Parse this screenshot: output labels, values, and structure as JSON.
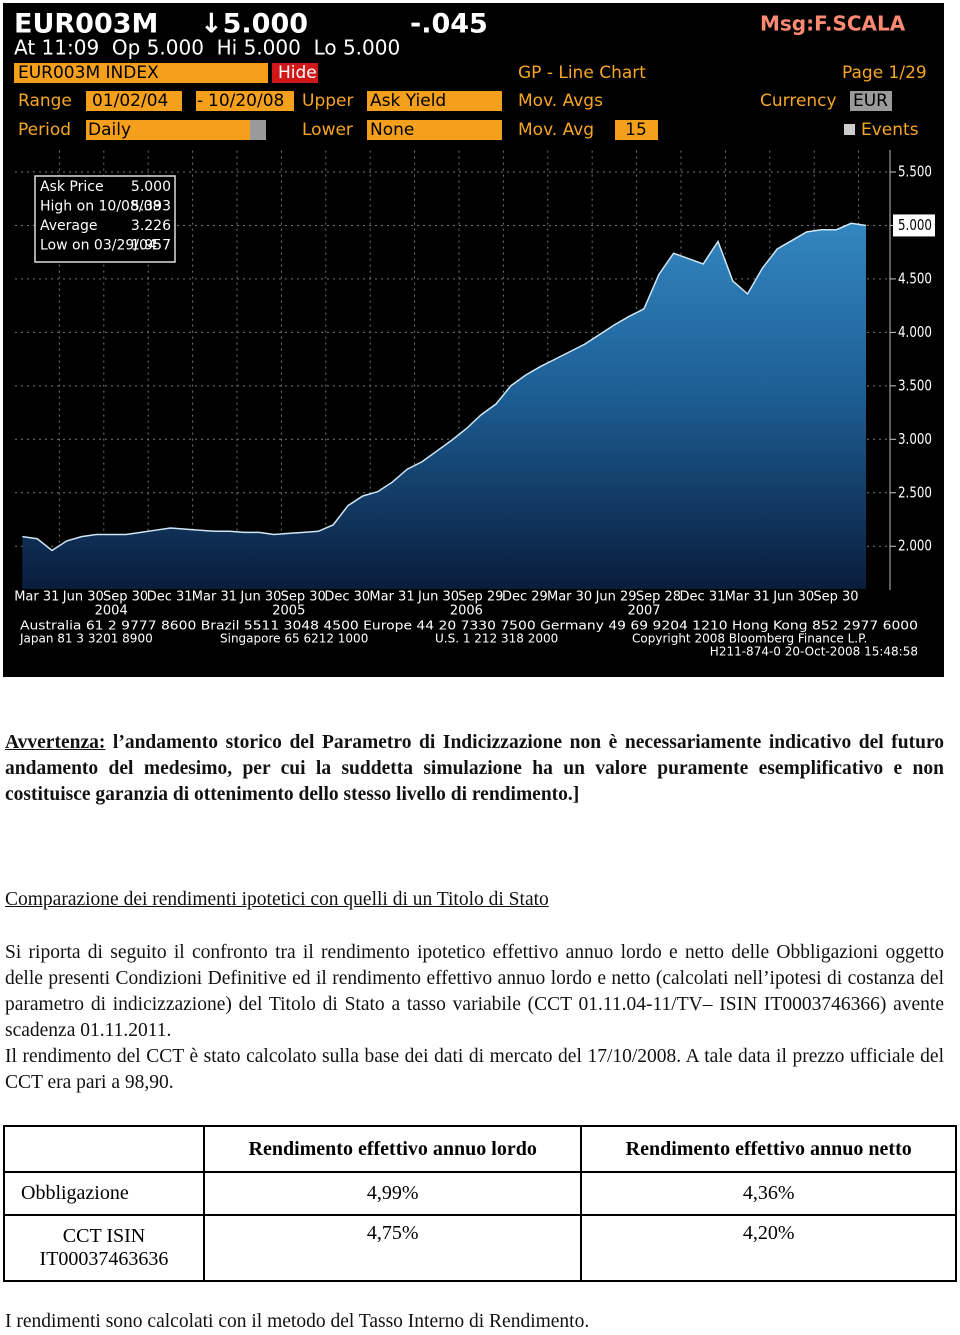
{
  "terminal": {
    "ticker": "EUR003M",
    "price": "↓5.000",
    "change": "-.045",
    "msg": "Msg:F.SCALA",
    "quote_line": "At 11:09  Op 5.000  Hi 5.000  Lo 5.000",
    "toolbar": {
      "security": "EUR003M INDEX",
      "hide": "Hide",
      "function": "GP - Line Chart",
      "page": "Page 1/29",
      "range_label": "Range",
      "start": "01/02/04",
      "range_sep": "-",
      "end": "10/20/08",
      "upper_label": "Upper",
      "upper": "Ask Yield",
      "mov_avgs_label": "Mov. Avgs",
      "currency_label": "Currency",
      "currency": "EUR",
      "period_label": "Period",
      "period": "Daily",
      "lower_label": "Lower",
      "lower": "None",
      "mov_avg_label": "Mov. Avg",
      "mov_avg": "15",
      "events": "Events"
    },
    "stats": [
      {
        "label": "Ask Price",
        "value": "5.000"
      },
      {
        "label": "High on 10/08/08",
        "value": "5.393"
      },
      {
        "label": "Average",
        "value": "3.226"
      },
      {
        "label": "Low on 03/29/04",
        "value": "1.957"
      }
    ],
    "footer": [
      "Australia 61 2 9777 8600 Brazil 5511 3048 4500 Europe 44 20 7330 7500 Germany 49 69 9204 1210 Hong Kong 852 2977 6000",
      "Japan 81 3 3201 8900",
      "Singapore 65 6212 1000",
      "U.S. 1 212 318 2000",
      "Copyright 2008 Bloomberg Finance L.P.",
      "H211-874-0 20-Oct-2008 15:48:58"
    ]
  },
  "chart_data": {
    "type": "area",
    "color": "#2f86c4",
    "x": [
      "2004-01",
      "2004-02",
      "2004-03",
      "2004-04",
      "2004-05",
      "2004-06",
      "2004-07",
      "2004-08",
      "2004-09",
      "2004-10",
      "2004-11",
      "2004-12",
      "2005-01",
      "2005-02",
      "2005-03",
      "2005-04",
      "2005-05",
      "2005-06",
      "2005-07",
      "2005-08",
      "2005-09",
      "2005-10",
      "2005-11",
      "2005-12",
      "2006-01",
      "2006-02",
      "2006-03",
      "2006-04",
      "2006-05",
      "2006-06",
      "2006-07",
      "2006-08",
      "2006-09",
      "2006-10",
      "2006-11",
      "2006-12",
      "2007-01",
      "2007-02",
      "2007-03",
      "2007-04",
      "2007-05",
      "2007-06",
      "2007-07",
      "2007-08",
      "2007-09",
      "2007-10",
      "2007-11",
      "2007-12",
      "2008-01",
      "2008-02",
      "2008-03",
      "2008-04",
      "2008-05",
      "2008-06",
      "2008-07",
      "2008-08",
      "2008-09",
      "2008-10"
    ],
    "values": [
      2.09,
      2.07,
      1.96,
      2.05,
      2.09,
      2.11,
      2.11,
      2.11,
      2.13,
      2.15,
      2.17,
      2.16,
      2.15,
      2.14,
      2.14,
      2.13,
      2.13,
      2.11,
      2.12,
      2.13,
      2.14,
      2.2,
      2.38,
      2.47,
      2.51,
      2.6,
      2.72,
      2.79,
      2.89,
      2.99,
      3.1,
      3.23,
      3.33,
      3.5,
      3.6,
      3.68,
      3.75,
      3.82,
      3.89,
      3.98,
      4.07,
      4.15,
      4.22,
      4.54,
      4.74,
      4.69,
      4.64,
      4.85,
      4.48,
      4.36,
      4.6,
      4.78,
      4.86,
      4.94,
      4.96,
      4.96,
      5.02,
      5.0
    ],
    "ylim": [
      1.6,
      5.7
    ],
    "yticks": [
      {
        "value": 2,
        "label": "2.000"
      },
      {
        "value": 2.5,
        "label": "2.500"
      },
      {
        "value": 3,
        "label": "3.000"
      },
      {
        "value": 3.5,
        "label": "3.500"
      },
      {
        "value": 4,
        "label": "4.000"
      },
      {
        "value": 4.5,
        "label": "4.500"
      },
      {
        "value": 5,
        "label": "5.000"
      },
      {
        "value": 5.5,
        "label": "5.500"
      }
    ],
    "xticks": [
      {
        "value": "2004-03",
        "label": "Mar 31"
      },
      {
        "value": "2004-06",
        "label": "Jun 30"
      },
      {
        "value": "2004-09",
        "label": "Sep 30"
      },
      {
        "value": "2004-12",
        "label": "Dec 31"
      },
      {
        "value": "2005-03",
        "label": "Mar 31"
      },
      {
        "value": "2005-06",
        "label": "Jun 30"
      },
      {
        "value": "2005-09",
        "label": "Sep 30"
      },
      {
        "value": "2005-12",
        "label": "Dec 30"
      },
      {
        "value": "2006-03",
        "label": "Mar 31"
      },
      {
        "value": "2006-06",
        "label": "Jun 30"
      },
      {
        "value": "2006-09",
        "label": "Sep 29"
      },
      {
        "value": "2006-12",
        "label": "Dec 29"
      },
      {
        "value": "2007-03",
        "label": "Mar 30"
      },
      {
        "value": "2007-06",
        "label": "Jun 29"
      },
      {
        "value": "2007-09",
        "label": "Sep 28"
      },
      {
        "value": "2007-12",
        "label": "Dec 31"
      },
      {
        "value": "2008-03",
        "label": "Mar 31"
      },
      {
        "value": "2008-06",
        "label": "Jun 30"
      },
      {
        "value": "2008-09",
        "label": "Sep 30"
      }
    ],
    "years": [
      {
        "value": "2004-07",
        "label": "2004"
      },
      {
        "value": "2005-07",
        "label": "2005"
      },
      {
        "value": "2006-07",
        "label": "2006"
      },
      {
        "value": "2007-07",
        "label": "2007"
      }
    ],
    "grid": true
  },
  "document": {
    "warning": {
      "label": "Avvertenza:",
      "text": "l’andamento storico del Parametro di Indicizzazione non è necessariamente indicativo del futuro andamento del medesimo, per cui la suddetta simulazione ha un valore puramente esemplificativo e non costituisce garanzia di ottenimento dello stesso livello di rendimento.]"
    },
    "section_title": "Comparazione dei rendimenti ipotetici con quelli di un Titolo di Stato",
    "paragraphs": [
      "Si riporta di seguito il confronto tra il rendimento ipotetico effettivo annuo lordo e netto delle Obbligazioni oggetto delle presenti Condizioni Definitive ed il rendimento effettivo annuo lordo e netto (calcolati nell’ipotesi di costanza del parametro di indicizzazione) del Titolo di Stato a tasso variabile (CCT 01.11.04-11/TV– ISIN IT0003746366) avente scadenza 01.11.2011.",
      "Il rendimento del CCT è stato calcolato sulla base dei dati di mercato del 17/10/2008. A tale data il prezzo ufficiale del CCT era pari a 98,90."
    ],
    "table": {
      "columns": [
        "Rendimento effettivo annuo lordo",
        "Rendimento effettivo annuo netto"
      ],
      "rows": [
        [
          "Obbligazione",
          "4,99%",
          "4,36%"
        ],
        [
          "CCT ISIN IT00037463636",
          "4,75%",
          "4,20%"
        ]
      ]
    },
    "note": "I rendimenti sono calcolati con il metodo del Tasso Interno di Rendimento."
  }
}
